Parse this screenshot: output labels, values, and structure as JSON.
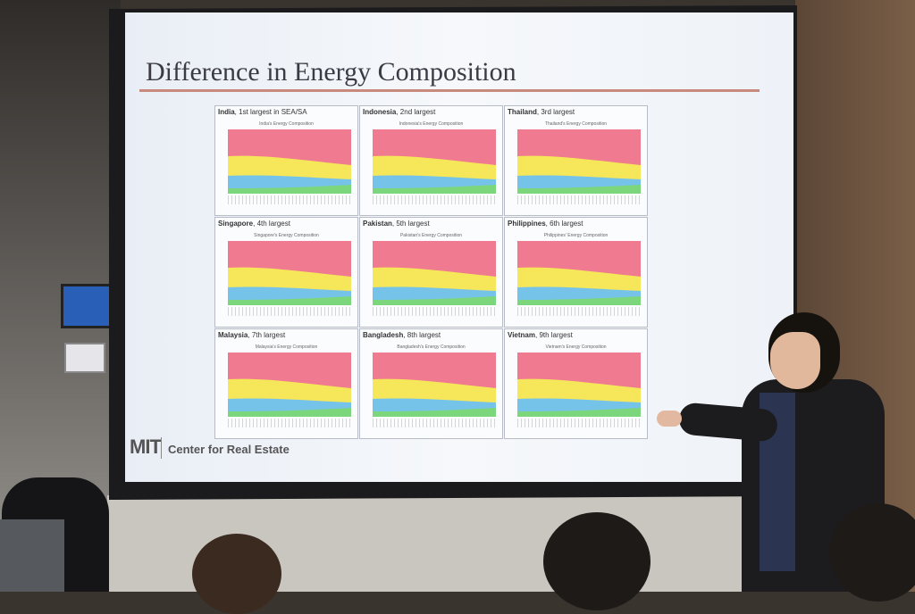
{
  "slide": {
    "title": "Difference in Energy Composition",
    "footer": {
      "logo": "MIT",
      "label": "Center for Real Estate"
    },
    "panels": [
      {
        "country": "India",
        "rank": "1st largest in SEA/SA",
        "chart_title": "India's Energy Composition"
      },
      {
        "country": "Indonesia",
        "rank": "2nd largest",
        "chart_title": "Indonesia's Energy Composition"
      },
      {
        "country": "Thailand",
        "rank": "3rd largest",
        "chart_title": "Thailand's Energy Composition"
      },
      {
        "country": "Singapore",
        "rank": "4th largest",
        "chart_title": "Singapore's Energy Composition"
      },
      {
        "country": "Pakistan",
        "rank": "5th largest",
        "chart_title": "Pakistan's Energy Composition"
      },
      {
        "country": "Philippines",
        "rank": "6th largest",
        "chart_title": "Philippines' Energy Composition"
      },
      {
        "country": "Malaysia",
        "rank": "7th largest",
        "chart_title": "Malaysia's Energy Composition"
      },
      {
        "country": "Bangladesh",
        "rank": "8th largest",
        "chart_title": "Bangladesh's Energy Composition"
      },
      {
        "country": "Vietnam",
        "rank": "9th largest",
        "chart_title": "Vietnam's Energy Composition"
      }
    ]
  }
}
